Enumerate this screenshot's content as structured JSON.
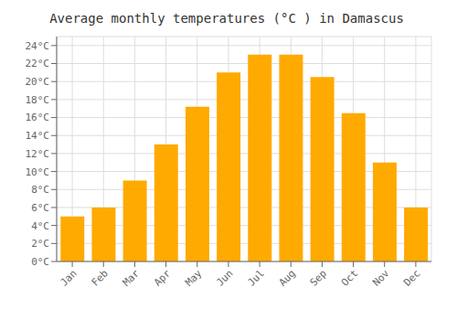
{
  "chart_data": {
    "type": "bar",
    "title": "Average monthly temperatures (°C ) in Damascus",
    "categories": [
      "Jan",
      "Feb",
      "Mar",
      "Apr",
      "May",
      "Jun",
      "Jul",
      "Aug",
      "Sep",
      "Oct",
      "Nov",
      "Dec"
    ],
    "values": [
      5.0,
      6.0,
      9.0,
      13.0,
      17.2,
      21.0,
      23.0,
      23.0,
      20.5,
      16.5,
      11.0,
      6.0
    ],
    "color": "#FFAA00",
    "ylim": [
      0,
      25
    ],
    "yticks": [
      {
        "value": 0,
        "label": "0°C"
      },
      {
        "value": 2,
        "label": "2°C"
      },
      {
        "value": 4,
        "label": "4°C"
      },
      {
        "value": 6,
        "label": "6°C"
      },
      {
        "value": 8,
        "label": "8°C"
      },
      {
        "value": 10,
        "label": "10°C"
      },
      {
        "value": 12,
        "label": "12°C"
      },
      {
        "value": 14,
        "label": "14°C"
      },
      {
        "value": 16,
        "label": "16°C"
      },
      {
        "value": 18,
        "label": "18°C"
      },
      {
        "value": 20,
        "label": "20°C"
      },
      {
        "value": 22,
        "label": "22°C"
      },
      {
        "value": 24,
        "label": "24°C"
      }
    ],
    "grid": true
  }
}
